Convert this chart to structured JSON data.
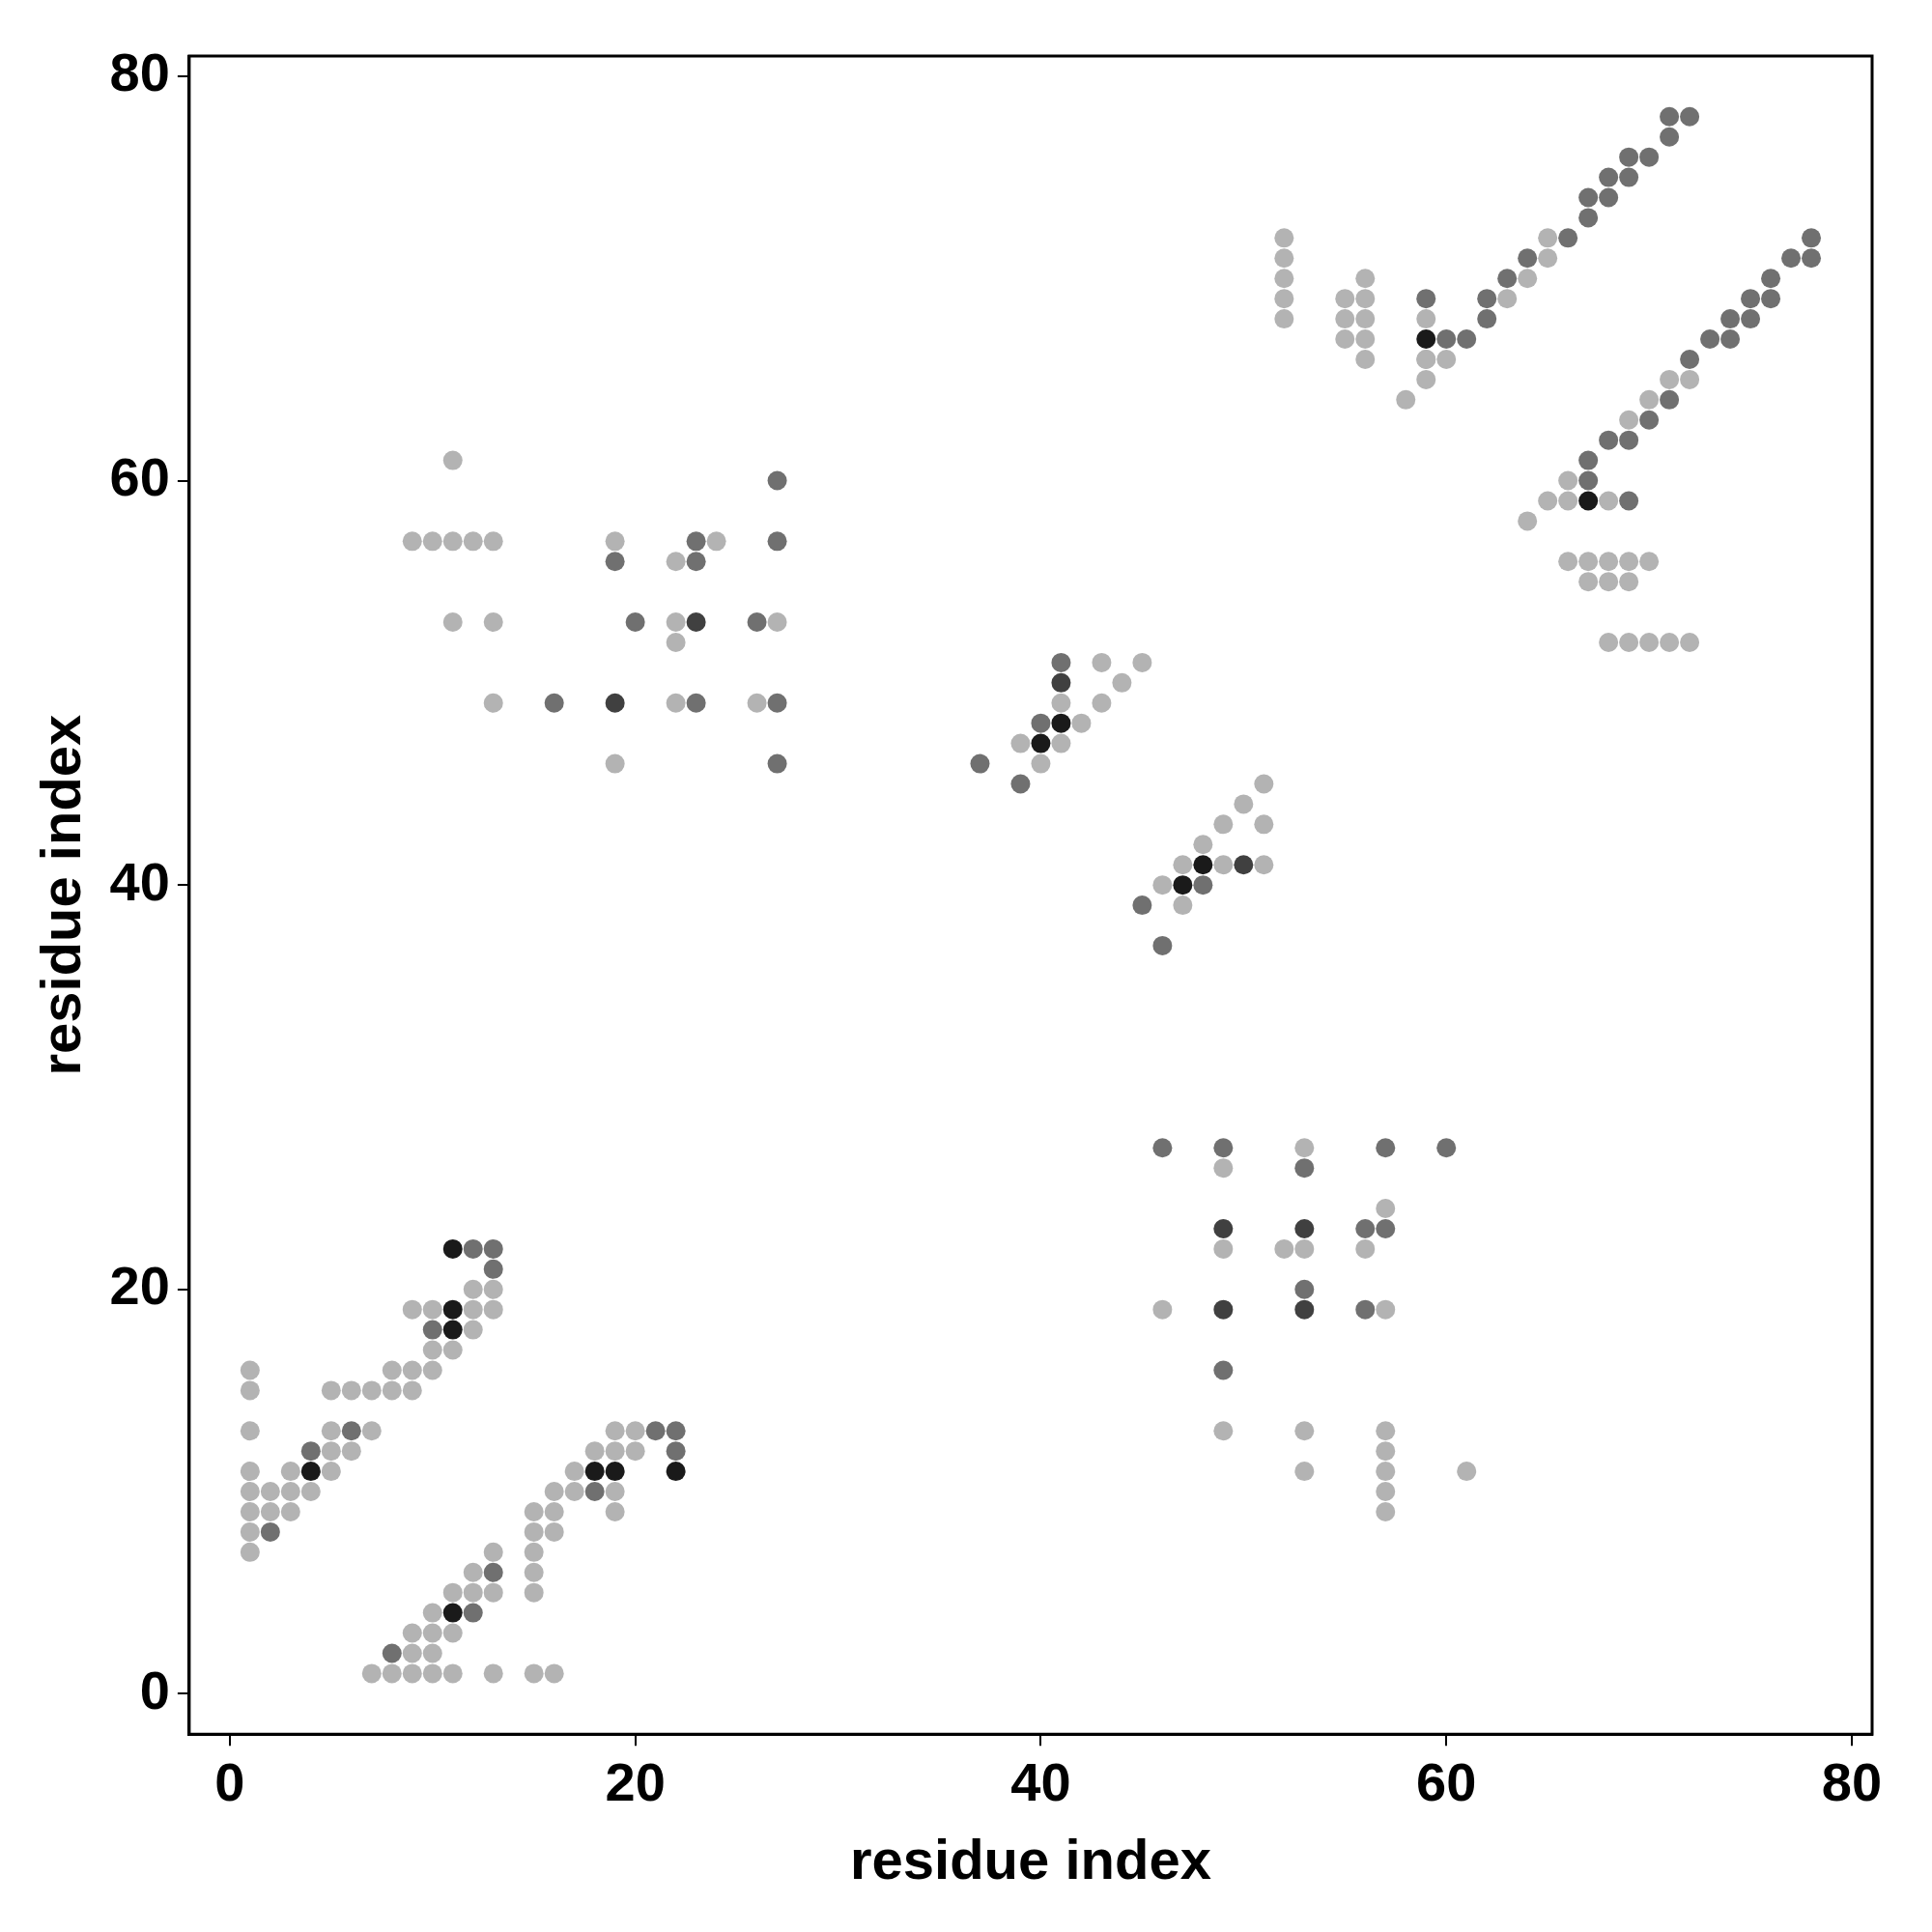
{
  "chart_data": {
    "type": "scatter",
    "xlabel": "residue index",
    "ylabel": "residue index",
    "xlim": [
      -2,
      81
    ],
    "ylim": [
      -2,
      81
    ],
    "xticks": [
      0,
      20,
      40,
      60,
      80
    ],
    "yticks": [
      0,
      20,
      40,
      60,
      80
    ],
    "grid": false,
    "legend": false,
    "marker": "circle",
    "series": [
      {
        "color": "#b3b3b3",
        "x": [
          1,
          1,
          5,
          6,
          7,
          8,
          9,
          8,
          9,
          10,
          1,
          5,
          7,
          5,
          6,
          1,
          3,
          5,
          1,
          2,
          3,
          4,
          1,
          2,
          3,
          1,
          1,
          9,
          10,
          12,
          13,
          12,
          10,
          11,
          12,
          13,
          19,
          20,
          18,
          19,
          20,
          17,
          16,
          17,
          19,
          15,
          16,
          19,
          15,
          16,
          13,
          15,
          12,
          15,
          11,
          12,
          13,
          15,
          10,
          9,
          10,
          11,
          9,
          10,
          7,
          8,
          9,
          10,
          11,
          13,
          15,
          16,
          11,
          9,
          10,
          11,
          12,
          13,
          19,
          24,
          22,
          11,
          13,
          22,
          27,
          22,
          13,
          22,
          26,
          19,
          43,
          45,
          44,
          41,
          43,
          42,
          39,
          41,
          40,
          51,
          50,
          49,
          51,
          48,
          47,
          49,
          51,
          46,
          47,
          53,
          49,
          57,
          49,
          52,
          53,
          56,
          46,
          57,
          49,
          53,
          57,
          57,
          53,
          57,
          61,
          57,
          57,
          52,
          65,
          52,
          65,
          52,
          56,
          64,
          52,
          55,
          56,
          63,
          52,
          55,
          56,
          59,
          55,
          56,
          59,
          56,
          59,
          60,
          59,
          71,
          72,
          58,
          70,
          69,
          66,
          65,
          66,
          68,
          64,
          66,
          67,
          68,
          69,
          70,
          67,
          68,
          69,
          68,
          69,
          70,
          71,
          72
        ],
        "values": [
          16,
          15,
          15,
          15,
          15,
          15,
          15,
          16,
          16,
          16,
          13,
          13,
          13,
          12,
          12,
          11,
          11,
          11,
          10,
          10,
          10,
          10,
          9,
          9,
          9,
          8,
          7,
          19,
          19,
          19,
          19,
          18,
          17,
          17,
          20,
          20,
          13,
          13,
          12,
          12,
          12,
          11,
          10,
          10,
          10,
          9,
          9,
          9,
          8,
          8,
          7,
          7,
          6,
          6,
          5,
          5,
          5,
          5,
          4,
          3,
          3,
          3,
          2,
          2,
          1,
          1,
          1,
          1,
          1,
          1,
          1,
          1,
          61,
          57,
          57,
          57,
          57,
          57,
          57,
          57,
          56,
          53,
          53,
          53,
          53,
          52,
          49,
          49,
          49,
          46,
          51,
          51,
          50,
          49,
          49,
          48,
          47,
          47,
          46,
          45,
          44,
          43,
          43,
          42,
          41,
          41,
          41,
          40,
          39,
          27,
          26,
          24,
          22,
          22,
          22,
          22,
          19,
          19,
          13,
          13,
          13,
          12,
          11,
          11,
          11,
          10,
          9,
          72,
          72,
          71,
          71,
          70,
          70,
          70,
          69,
          69,
          69,
          69,
          68,
          68,
          68,
          68,
          67,
          67,
          66,
          66,
          66,
          66,
          65,
          65,
          65,
          64,
          64,
          63,
          60,
          59,
          59,
          59,
          58,
          56,
          56,
          56,
          56,
          56,
          55,
          55,
          55,
          52,
          52,
          52,
          52,
          52
        ]
      },
      {
        "color": "#707070",
        "x": [
          6,
          4,
          2,
          10,
          12,
          13,
          13,
          21,
          22,
          22,
          18,
          13,
          12,
          8,
          27,
          23,
          27,
          19,
          23,
          20,
          26,
          16,
          23,
          27,
          27,
          41,
          40,
          37,
          39,
          48,
          45,
          46,
          46,
          49,
          57,
          60,
          53,
          56,
          57,
          53,
          56,
          49,
          71,
          72,
          71,
          69,
          70,
          68,
          69,
          67,
          68,
          67,
          66,
          78,
          64,
          77,
          78,
          63,
          76,
          59,
          62,
          75,
          76,
          62,
          74,
          75,
          60,
          61,
          73,
          74,
          72,
          71,
          70,
          68,
          69,
          67,
          67,
          69
        ],
        "values": [
          13,
          12,
          8,
          18,
          22,
          22,
          21,
          13,
          13,
          12,
          10,
          6,
          4,
          2,
          60,
          57,
          57,
          56,
          56,
          53,
          53,
          49,
          49,
          49,
          46,
          51,
          48,
          46,
          45,
          40,
          39,
          37,
          27,
          27,
          27,
          27,
          26,
          23,
          23,
          20,
          19,
          16,
          78,
          78,
          77,
          76,
          76,
          75,
          75,
          74,
          74,
          73,
          72,
          72,
          71,
          71,
          71,
          70,
          70,
          69,
          69,
          69,
          69,
          68,
          68,
          68,
          67,
          67,
          67,
          67,
          66,
          64,
          63,
          62,
          62,
          61,
          60,
          59
        ]
      },
      {
        "color": "#404040",
        "x": [
          19,
          23,
          41,
          50,
          49,
          53,
          49,
          53
        ],
        "values": [
          49,
          53,
          50,
          41,
          23,
          23,
          19,
          19
        ]
      },
      {
        "color": "#1a1a1a",
        "x": [
          4,
          11,
          11,
          11,
          22,
          18,
          19,
          11,
          40,
          41,
          47,
          48,
          59,
          67
        ],
        "values": [
          11,
          19,
          18,
          22,
          11,
          11,
          11,
          4,
          47,
          48,
          40,
          41,
          67,
          59
        ]
      }
    ]
  }
}
